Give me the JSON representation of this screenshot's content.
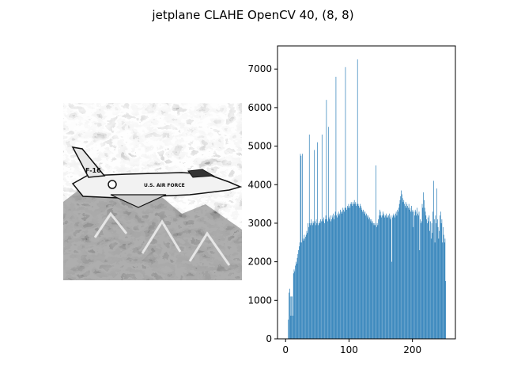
{
  "figure": {
    "title": "jetplane CLAHE OpenCV 40, (8, 8)"
  },
  "image_panel": {
    "subject": "CLAHE-equalized grayscale photo of a jet fighter over snowy mountains",
    "fuselage_text": "U.S. AIR FORCE",
    "tail_number": "F-16"
  },
  "chart_data": {
    "type": "bar",
    "title": "",
    "xlabel": "",
    "ylabel": "",
    "xlim": [
      -12.75,
      267.75
    ],
    "ylim": [
      0,
      7600
    ],
    "xticks": [
      0,
      100,
      200
    ],
    "yticks": [
      0,
      1000,
      2000,
      3000,
      4000,
      5000,
      6000,
      7000
    ],
    "bar_color": "#1f77b4",
    "bins": 256,
    "x_start": 0,
    "values": [
      0,
      0,
      0,
      0,
      500,
      1200,
      1300,
      1100,
      600,
      1100,
      1100,
      600,
      1700,
      1800,
      1750,
      1900,
      2000,
      1950,
      2100,
      2200,
      2300,
      2400,
      2500,
      4800,
      4750,
      2500,
      4800,
      2600,
      2550,
      2700,
      2600,
      2650,
      2700,
      2800,
      2750,
      3000,
      2900,
      5300,
      3000,
      2950,
      3100,
      3000,
      2950,
      3050,
      3000,
      4900,
      3050,
      2950,
      3100,
      3000,
      5100,
      2950,
      3000,
      3050,
      3000,
      3100,
      3050,
      5300,
      3100,
      3050,
      3150,
      3000,
      3100,
      3200,
      6200,
      3100,
      3050,
      5500,
      3150,
      3100,
      3200,
      3050,
      3100,
      3200,
      3150,
      3250,
      3100,
      3200,
      3300,
      6800,
      3200,
      3150,
      3250,
      3300,
      3200,
      3250,
      3350,
      3300,
      3250,
      3300,
      3400,
      3350,
      3300,
      3400,
      7050,
      3400,
      3350,
      3450,
      3400,
      3500,
      3450,
      3400,
      3500,
      3550,
      3500,
      3450,
      3550,
      3500,
      3600,
      3500,
      3550,
      3450,
      3500,
      7250,
      3500,
      3450,
      3400,
      3500,
      3450,
      3400,
      3350,
      3300,
      3350,
      3300,
      3250,
      3300,
      3200,
      3250,
      3200,
      3150,
      3200,
      3100,
      3150,
      3100,
      3050,
      3100,
      3000,
      3050,
      3000,
      2950,
      3000,
      2950,
      4500,
      2900,
      3000,
      2950,
      3100,
      3200,
      3350,
      3300,
      3200,
      3150,
      3200,
      3300,
      3250,
      3200,
      3150,
      3200,
      3250,
      3150,
      3200,
      3150,
      3200,
      3250,
      3150,
      3100,
      3200,
      2000,
      3150,
      3200,
      3250,
      3200,
      3150,
      3250,
      3300,
      3200,
      3350,
      3300,
      3400,
      3500,
      3600,
      3700,
      3850,
      3750,
      3650,
      3550,
      3600,
      3500,
      3450,
      3550,
      3400,
      3500,
      3450,
      3400,
      3500,
      3350,
      3400,
      3300,
      3450,
      3300,
      3350,
      2900,
      3300,
      3200,
      3350,
      3300,
      3200,
      3400,
      3250,
      3200,
      3300,
      2300,
      3100,
      3000,
      3050,
      3500,
      3400,
      3800,
      3600,
      3400,
      3300,
      3200,
      3100,
      3000,
      3150,
      3050,
      3200,
      2800,
      3050,
      2600,
      3000,
      2750,
      3300,
      4100,
      3100,
      2500,
      3200,
      3000,
      3900,
      3100,
      2900,
      2600,
      2800,
      3200,
      3300,
      3000,
      3100,
      2500,
      2900,
      2700,
      2500,
      2600,
      1500,
      0,
      0,
      0
    ]
  }
}
